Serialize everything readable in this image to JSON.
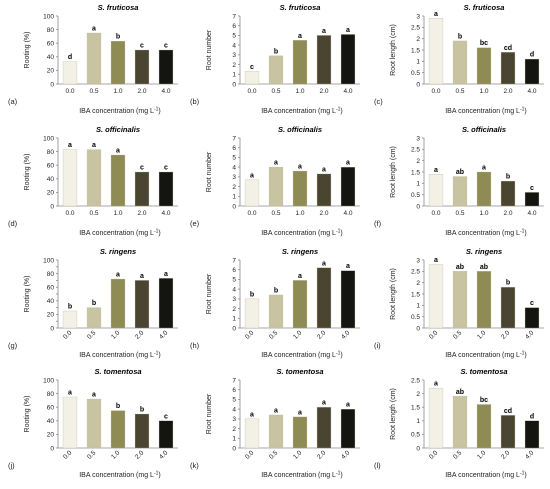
{
  "figure": {
    "x_axis_label": "IBA concentration (mg L",
    "x_axis_label_sup": "-1",
    "x_axis_label_end": ")"
  },
  "colors": [
    "#f3f1e6",
    "#c8c4a2",
    "#8f8b55",
    "#494531",
    "#141410"
  ],
  "chart_data": [
    {
      "panel": "(a)",
      "title": "S. fruticosa",
      "type": "bar",
      "ylabel": "Rooting (%)",
      "categories": [
        "0.0",
        "0.5",
        "1.0",
        "2.0",
        "4.0"
      ],
      "values": [
        33,
        75,
        63,
        50,
        50
      ],
      "letters": [
        "d",
        "a",
        "b",
        "c",
        "c"
      ],
      "ylim": [
        0,
        100
      ],
      "yticks": [
        0,
        20,
        40,
        60,
        80,
        100
      ],
      "rotated": false
    },
    {
      "panel": "(b)",
      "title": "S. fruticosa",
      "type": "bar",
      "ylabel": "Root number",
      "categories": [
        "0.0",
        "0.5",
        "1.0",
        "2.0",
        "4.0"
      ],
      "values": [
        1.3,
        2.9,
        4.5,
        5.0,
        5.1
      ],
      "letters": [
        "c",
        "b",
        "a",
        "a",
        "a"
      ],
      "ylim": [
        0,
        7
      ],
      "yticks": [
        0,
        1,
        2,
        3,
        4,
        5,
        6,
        7
      ],
      "rotated": false
    },
    {
      "panel": "(c)",
      "title": "S. fruticosa",
      "type": "bar",
      "ylabel": "Root length (cm)",
      "categories": [
        "0.0",
        "0.5",
        "1.0",
        "2.0",
        "4.0"
      ],
      "values": [
        2.9,
        1.9,
        1.6,
        1.4,
        1.1
      ],
      "letters": [
        "a",
        "b",
        "bc",
        "cd",
        "d"
      ],
      "ylim": [
        0,
        3
      ],
      "yticks": [
        0,
        0.5,
        1,
        1.5,
        2,
        2.5,
        3
      ],
      "rotated": false
    },
    {
      "panel": "(d)",
      "title": "S. officinalis",
      "type": "bar",
      "ylabel": "Rooting (%)",
      "categories": [
        "0.0",
        "0.5",
        "1.0",
        "2.0",
        "4.0"
      ],
      "values": [
        83,
        83,
        75,
        50,
        50
      ],
      "letters": [
        "a",
        "a",
        "a",
        "c",
        "c"
      ],
      "ylim": [
        0,
        100
      ],
      "yticks": [
        0,
        20,
        40,
        60,
        80,
        100
      ],
      "rotated": false
    },
    {
      "panel": "(e)",
      "title": "S. officinalis",
      "type": "bar",
      "ylabel": "Root number",
      "categories": [
        "0.0",
        "0.5",
        "1.0",
        "2.0",
        "4.0"
      ],
      "values": [
        2.7,
        4.0,
        3.6,
        3.3,
        4.0
      ],
      "letters": [
        "a",
        "a",
        "a",
        "a",
        "a"
      ],
      "ylim": [
        0,
        7
      ],
      "yticks": [
        0,
        1,
        2,
        3,
        4,
        5,
        6,
        7
      ],
      "rotated": false
    },
    {
      "panel": "(f)",
      "title": "S. officinalis",
      "type": "bar",
      "ylabel": "Root length (cm)",
      "categories": [
        "0.0",
        "0.5",
        "1.0",
        "2.0",
        "4.0"
      ],
      "values": [
        1.4,
        1.3,
        1.5,
        1.1,
        0.6
      ],
      "letters": [
        "a",
        "ab",
        "a",
        "b",
        "c"
      ],
      "ylim": [
        0,
        3
      ],
      "yticks": [
        0,
        0.5,
        1,
        1.5,
        2,
        2.5,
        3
      ],
      "rotated": false
    },
    {
      "panel": "(g)",
      "title": "S. ringens",
      "type": "bar",
      "ylabel": "Rooting (%)",
      "categories": [
        "0.0",
        "0.5",
        "1.0",
        "2.0",
        "4.0"
      ],
      "values": [
        25,
        30,
        72,
        70,
        73
      ],
      "letters": [
        "b",
        "b",
        "a",
        "a",
        "a"
      ],
      "ylim": [
        0,
        100
      ],
      "yticks": [
        0,
        10,
        20,
        30,
        40,
        50,
        60,
        70,
        80,
        90,
        100
      ],
      "ytick_labels": [
        "0",
        "",
        "20",
        "",
        "40",
        "",
        "60",
        "",
        "80",
        "",
        "100"
      ],
      "rotated": true
    },
    {
      "panel": "(h)",
      "title": "S. ringens",
      "type": "bar",
      "ylabel": "Root number",
      "categories": [
        "0.0",
        "0.5",
        "1.0",
        "2.0",
        "4.0"
      ],
      "values": [
        3.0,
        3.4,
        4.9,
        6.2,
        5.9
      ],
      "letters": [
        "b",
        "b",
        "a",
        "a",
        "a"
      ],
      "ylim": [
        0,
        7
      ],
      "yticks": [
        0,
        1,
        2,
        3,
        4,
        5,
        6,
        7
      ],
      "rotated": true
    },
    {
      "panel": "(i)",
      "title": "S. ringens",
      "type": "bar",
      "ylabel": "Root length (cm)",
      "categories": [
        "0.0",
        "0.5",
        "1.0",
        "2.0",
        "4.0"
      ],
      "values": [
        2.8,
        2.5,
        2.5,
        1.8,
        0.9
      ],
      "letters": [
        "a",
        "ab",
        "ab",
        "b",
        "c"
      ],
      "ylim": [
        0,
        3
      ],
      "yticks": [
        0,
        0.5,
        1,
        1.5,
        2,
        2.5,
        3
      ],
      "rotated": true
    },
    {
      "panel": "(j)",
      "title": "S. tomentosa",
      "type": "bar",
      "ylabel": "Rooting (%)",
      "categories": [
        "0.0",
        "0.5",
        "1.0",
        "2.0",
        "4.0"
      ],
      "values": [
        75,
        72,
        55,
        50,
        40
      ],
      "letters": [
        "a",
        "a",
        "b",
        "b",
        "c"
      ],
      "ylim": [
        0,
        100
      ],
      "yticks": [
        0,
        20,
        40,
        60,
        80,
        100
      ],
      "rotated": true
    },
    {
      "panel": "(k)",
      "title": "S. tomentosa",
      "type": "bar",
      "ylabel": "Root number",
      "categories": [
        "0.0",
        "0.5",
        "1.0",
        "2.0",
        "4.0"
      ],
      "values": [
        3.0,
        3.4,
        3.2,
        4.2,
        4.0
      ],
      "letters": [
        "a",
        "a",
        "a",
        "a",
        "a"
      ],
      "ylim": [
        0,
        7
      ],
      "yticks": [
        0,
        1,
        2,
        3,
        4,
        5,
        6,
        7
      ],
      "rotated": true
    },
    {
      "panel": "(l)",
      "title": "S. tomentosa",
      "type": "bar",
      "ylabel": "Root length (cm)",
      "categories": [
        "0.0",
        "0.5",
        "1.0",
        "2.0",
        "4.0"
      ],
      "values": [
        2.2,
        1.9,
        1.6,
        1.2,
        1.0
      ],
      "letters": [
        "a",
        "ab",
        "bc",
        "cd",
        "d"
      ],
      "ylim": [
        0,
        2.5
      ],
      "yticks": [
        0,
        0.5,
        1,
        1.5,
        2,
        2.5
      ],
      "rotated": true
    }
  ]
}
